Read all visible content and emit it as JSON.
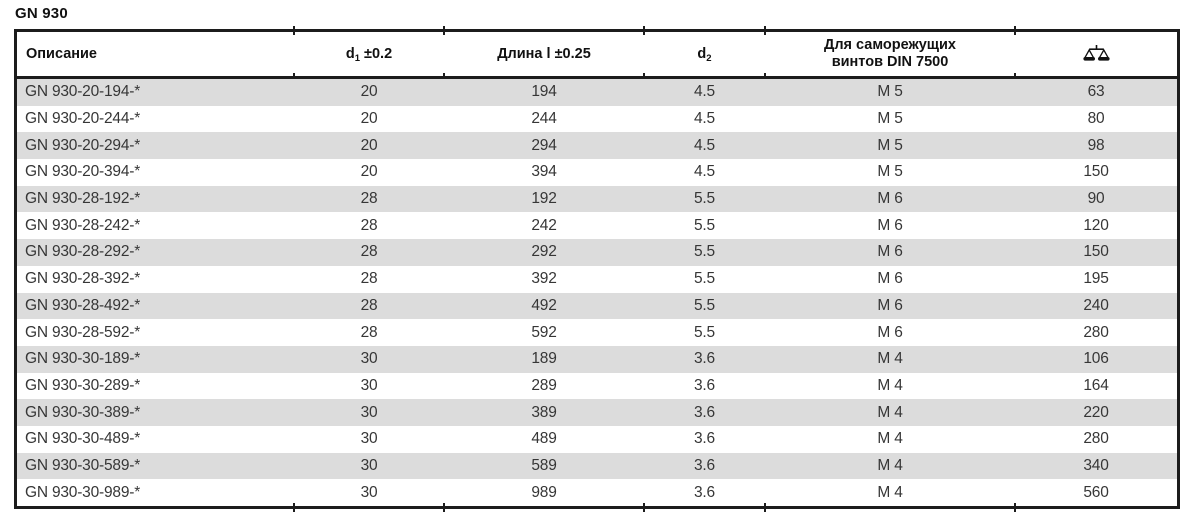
{
  "page": {
    "title": "GN 930"
  },
  "table": {
    "headers": {
      "description": "Описание",
      "d1": {
        "base": "d",
        "sub": "1",
        "tol": " ±0.2"
      },
      "length": "Длина l ±0.25",
      "d2": {
        "base": "d",
        "sub": "2"
      },
      "din": {
        "line1": "Для саморежущих",
        "line2": "винтов DIN 7500"
      },
      "weight_icon": "scale-icon"
    },
    "columns_order": [
      "description",
      "d1",
      "length",
      "d2",
      "din",
      "weight"
    ],
    "colors": {
      "border": "#1c1c1c",
      "stripe": "#dcdcdc",
      "header_text": "#111111",
      "body_text": "#363636"
    },
    "rows": [
      {
        "description": "GN 930-20-194-*",
        "d1": "20",
        "length": "194",
        "d2": "4.5",
        "din": "M 5",
        "weight": "63"
      },
      {
        "description": "GN 930-20-244-*",
        "d1": "20",
        "length": "244",
        "d2": "4.5",
        "din": "M 5",
        "weight": "80"
      },
      {
        "description": "GN 930-20-294-*",
        "d1": "20",
        "length": "294",
        "d2": "4.5",
        "din": "M 5",
        "weight": "98"
      },
      {
        "description": "GN 930-20-394-*",
        "d1": "20",
        "length": "394",
        "d2": "4.5",
        "din": "M 5",
        "weight": "150"
      },
      {
        "description": "GN 930-28-192-*",
        "d1": "28",
        "length": "192",
        "d2": "5.5",
        "din": "M 6",
        "weight": "90"
      },
      {
        "description": "GN 930-28-242-*",
        "d1": "28",
        "length": "242",
        "d2": "5.5",
        "din": "M 6",
        "weight": "120"
      },
      {
        "description": "GN 930-28-292-*",
        "d1": "28",
        "length": "292",
        "d2": "5.5",
        "din": "M 6",
        "weight": "150"
      },
      {
        "description": "GN 930-28-392-*",
        "d1": "28",
        "length": "392",
        "d2": "5.5",
        "din": "M 6",
        "weight": "195"
      },
      {
        "description": "GN 930-28-492-*",
        "d1": "28",
        "length": "492",
        "d2": "5.5",
        "din": "M 6",
        "weight": "240"
      },
      {
        "description": "GN 930-28-592-*",
        "d1": "28",
        "length": "592",
        "d2": "5.5",
        "din": "M 6",
        "weight": "280"
      },
      {
        "description": "GN 930-30-189-*",
        "d1": "30",
        "length": "189",
        "d2": "3.6",
        "din": "M 4",
        "weight": "106"
      },
      {
        "description": "GN 930-30-289-*",
        "d1": "30",
        "length": "289",
        "d2": "3.6",
        "din": "M 4",
        "weight": "164"
      },
      {
        "description": "GN 930-30-389-*",
        "d1": "30",
        "length": "389",
        "d2": "3.6",
        "din": "M 4",
        "weight": "220"
      },
      {
        "description": "GN 930-30-489-*",
        "d1": "30",
        "length": "489",
        "d2": "3.6",
        "din": "M 4",
        "weight": "280"
      },
      {
        "description": "GN 930-30-589-*",
        "d1": "30",
        "length": "589",
        "d2": "3.6",
        "din": "M 4",
        "weight": "340"
      },
      {
        "description": "GN 930-30-989-*",
        "d1": "30",
        "length": "989",
        "d2": "3.6",
        "din": "M 4",
        "weight": "560"
      }
    ]
  }
}
